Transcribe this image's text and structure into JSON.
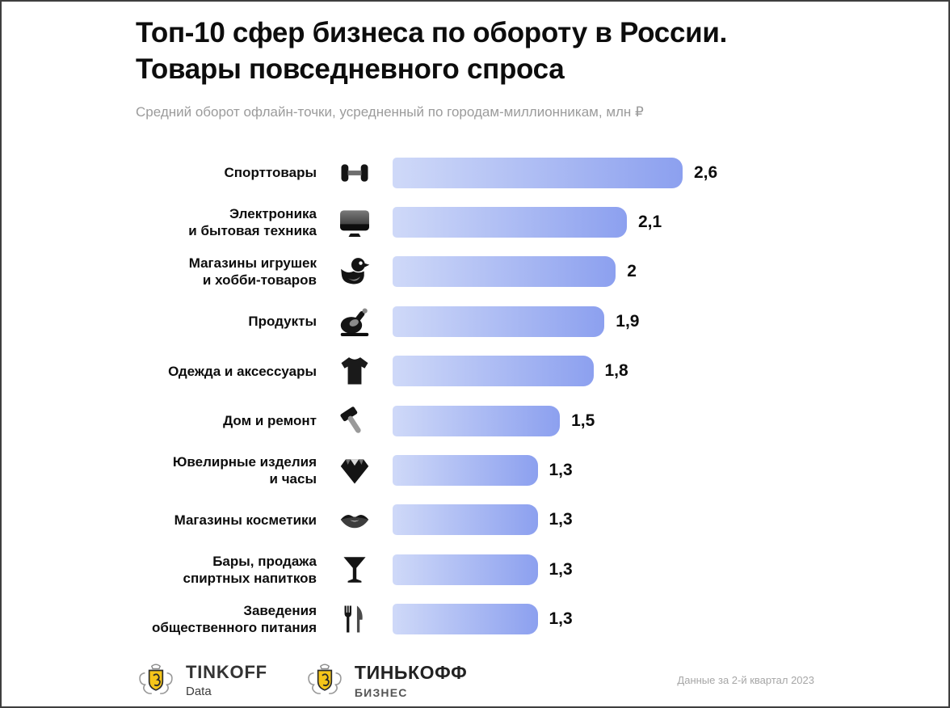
{
  "page": {
    "title_line1": "Топ-10 сфер бизнеса по обороту в России.",
    "title_line2": "Товары повседневного спроса",
    "subtitle": "Средний оборот офлайн-точки, усредненный по городам-миллионникам, млн ₽"
  },
  "chart_data": {
    "type": "bar",
    "orientation": "horizontal",
    "title": "Топ-10 сфер бизнеса по обороту в России. Товары повседневного спроса",
    "subtitle": "Средний оборот офлайн-точки, усредненный по городам-миллионникам, млн ₽",
    "unit": "млн ₽",
    "xlim": [
      0,
      2.6
    ],
    "bar_gradient": [
      "#cfd9f8",
      "#8ca0ef"
    ],
    "categories": [
      "Спорттовары",
      "Электроника и бытовая техника",
      "Магазины игрушек и хобби-товаров",
      "Продукты",
      "Одежда и аксессуары",
      "Дом и ремонт",
      "Ювелирные изделия и часы",
      "Магазины косметики",
      "Бары, продажа спиртных напитков",
      "Заведения общественного питания"
    ],
    "values": [
      2.6,
      2.1,
      2,
      1.9,
      1.8,
      1.5,
      1.3,
      1.3,
      1.3,
      1.3
    ],
    "rows": [
      {
        "label_lines": [
          "Спорттовары"
        ],
        "icon": "dumbbell-icon",
        "value": 2.6,
        "display": "2,6"
      },
      {
        "label_lines": [
          "Электроника",
          "и бытовая техника"
        ],
        "icon": "monitor-icon",
        "value": 2.1,
        "display": "2,1"
      },
      {
        "label_lines": [
          "Магазины игрушек",
          "и хобби-товаров"
        ],
        "icon": "duck-icon",
        "value": 2,
        "display": "2"
      },
      {
        "label_lines": [
          "Продукты"
        ],
        "icon": "roast-chicken-icon",
        "value": 1.9,
        "display": "1,9"
      },
      {
        "label_lines": [
          "Одежда и аксессуары"
        ],
        "icon": "tshirt-icon",
        "value": 1.8,
        "display": "1,8"
      },
      {
        "label_lines": [
          "Дом и ремонт"
        ],
        "icon": "hammer-icon",
        "value": 1.5,
        "display": "1,5"
      },
      {
        "label_lines": [
          "Ювелирные изделия",
          "и часы"
        ],
        "icon": "diamond-icon",
        "value": 1.3,
        "display": "1,3"
      },
      {
        "label_lines": [
          "Магазины косметики"
        ],
        "icon": "lips-icon",
        "value": 1.3,
        "display": "1,3"
      },
      {
        "label_lines": [
          "Бары, продажа",
          "спиртных напитков"
        ],
        "icon": "martini-glass-icon",
        "value": 1.3,
        "display": "1,3"
      },
      {
        "label_lines": [
          "Заведения",
          "общественного питания"
        ],
        "icon": "fork-knife-icon",
        "value": 1.3,
        "display": "1,3"
      }
    ]
  },
  "footer": {
    "tinkoff_data": {
      "brand": "TINKOFF",
      "sub": "Data",
      "icon": "tinkoff-crest-icon"
    },
    "tinkoff_business": {
      "brand": "ТИНЬКОФФ",
      "sub": "БИЗНЕС",
      "icon": "tinkoff-crest-icon"
    },
    "note": "Данные за 2-й квартал 2023"
  }
}
